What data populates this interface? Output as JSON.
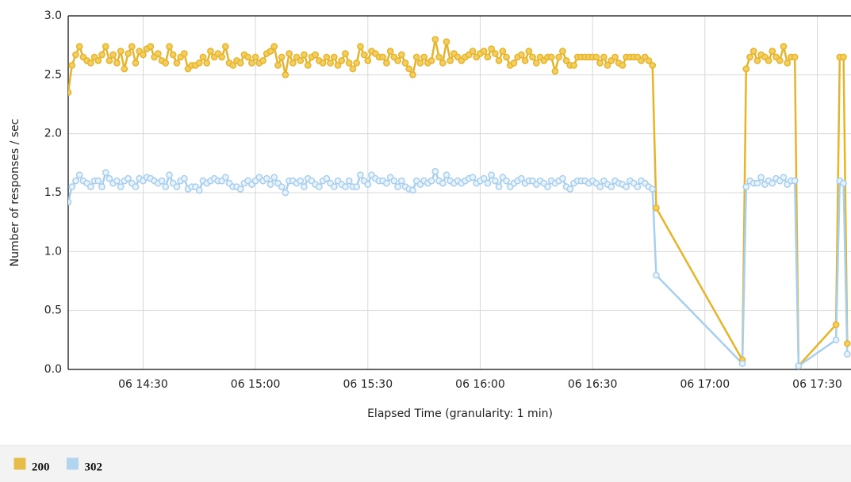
{
  "chart_data": {
    "type": "line",
    "xlabel": "Elapsed Time (granularity: 1 min)",
    "ylabel": "Number of responses / sec",
    "xlim": [
      "06 14:10",
      "06 17:39"
    ],
    "xticks": [
      "06 14:30",
      "06 15:00",
      "06 15:30",
      "06 16:00",
      "06 16:30",
      "06 17:00",
      "06 17:30"
    ],
    "ylim": [
      0,
      3
    ],
    "yticks": [
      {
        "value": 0,
        "label": "0.0"
      },
      0.5,
      {
        "value": 1,
        "label": "1.0"
      },
      1.5,
      {
        "value": 2,
        "label": "2.0"
      },
      2.5,
      {
        "value": 3,
        "label": "3.0"
      }
    ],
    "grid": true,
    "legend": "bottom-left",
    "x": [
      "06 14:10",
      "06 14:11",
      "06 14:12",
      "06 14:13",
      "06 14:14",
      "06 14:15",
      "06 14:16",
      "06 14:17",
      "06 14:18",
      "06 14:19",
      "06 14:20",
      "06 14:21",
      "06 14:22",
      "06 14:23",
      "06 14:24",
      "06 14:25",
      "06 14:26",
      "06 14:27",
      "06 14:28",
      "06 14:29",
      "06 14:30",
      "06 14:31",
      "06 14:32",
      "06 14:33",
      "06 14:34",
      "06 14:35",
      "06 14:36",
      "06 14:37",
      "06 14:38",
      "06 14:39",
      "06 14:40",
      "06 14:41",
      "06 14:42",
      "06 14:43",
      "06 14:44",
      "06 14:45",
      "06 14:46",
      "06 14:47",
      "06 14:48",
      "06 14:49",
      "06 14:50",
      "06 14:51",
      "06 14:52",
      "06 14:53",
      "06 14:54",
      "06 14:55",
      "06 14:56",
      "06 14:57",
      "06 14:58",
      "06 14:59",
      "06 15:00",
      "06 15:01",
      "06 15:02",
      "06 15:03",
      "06 15:04",
      "06 15:05",
      "06 15:06",
      "06 15:07",
      "06 15:08",
      "06 15:09",
      "06 15:10",
      "06 15:11",
      "06 15:12",
      "06 15:13",
      "06 15:14",
      "06 15:15",
      "06 15:16",
      "06 15:17",
      "06 15:18",
      "06 15:19",
      "06 15:20",
      "06 15:21",
      "06 15:22",
      "06 15:23",
      "06 15:24",
      "06 15:25",
      "06 15:26",
      "06 15:27",
      "06 15:28",
      "06 15:29",
      "06 15:30",
      "06 15:31",
      "06 15:32",
      "06 15:33",
      "06 15:34",
      "06 15:35",
      "06 15:36",
      "06 15:37",
      "06 15:38",
      "06 15:39",
      "06 15:40",
      "06 15:41",
      "06 15:42",
      "06 15:43",
      "06 15:44",
      "06 15:45",
      "06 15:46",
      "06 15:47",
      "06 15:48",
      "06 15:49",
      "06 15:50",
      "06 15:51",
      "06 15:52",
      "06 15:53",
      "06 15:54",
      "06 15:55",
      "06 15:56",
      "06 15:57",
      "06 15:58",
      "06 15:59",
      "06 16:00",
      "06 16:01",
      "06 16:02",
      "06 16:03",
      "06 16:04",
      "06 16:05",
      "06 16:06",
      "06 16:07",
      "06 16:08",
      "06 16:09",
      "06 16:10",
      "06 16:11",
      "06 16:12",
      "06 16:13",
      "06 16:14",
      "06 16:15",
      "06 16:16",
      "06 16:17",
      "06 16:18",
      "06 16:19",
      "06 16:20",
      "06 16:21",
      "06 16:22",
      "06 16:23",
      "06 16:24",
      "06 16:25",
      "06 16:26",
      "06 16:27",
      "06 16:28",
      "06 16:29",
      "06 16:30",
      "06 16:31",
      "06 16:32",
      "06 16:33",
      "06 16:34",
      "06 16:35",
      "06 16:36",
      "06 16:37",
      "06 16:38",
      "06 16:39",
      "06 16:40",
      "06 16:41",
      "06 16:42",
      "06 16:43",
      "06 16:44",
      "06 16:45",
      "06 16:46",
      "06 16:47",
      "06 17:10",
      "06 17:11",
      "06 17:12",
      "06 17:13",
      "06 17:14",
      "06 17:15",
      "06 17:16",
      "06 17:17",
      "06 17:18",
      "06 17:19",
      "06 17:20",
      "06 17:21",
      "06 17:22",
      "06 17:23",
      "06 17:24",
      "06 17:25",
      "06 17:35",
      "06 17:36",
      "06 17:37",
      "06 17:38"
    ],
    "series": [
      {
        "name": "200",
        "color": "#e6b42c",
        "marker_fill": "#f3cf62",
        "values": [
          2.35,
          2.58,
          2.67,
          2.74,
          2.65,
          2.62,
          2.6,
          2.65,
          2.62,
          2.67,
          2.74,
          2.62,
          2.67,
          2.6,
          2.7,
          2.55,
          2.68,
          2.74,
          2.6,
          2.7,
          2.67,
          2.72,
          2.74,
          2.65,
          2.68,
          2.62,
          2.6,
          2.74,
          2.67,
          2.6,
          2.65,
          2.68,
          2.55,
          2.58,
          2.58,
          2.6,
          2.65,
          2.6,
          2.7,
          2.65,
          2.68,
          2.65,
          2.74,
          2.6,
          2.58,
          2.62,
          2.6,
          2.67,
          2.65,
          2.6,
          2.65,
          2.6,
          2.62,
          2.68,
          2.7,
          2.74,
          2.58,
          2.65,
          2.5,
          2.68,
          2.6,
          2.65,
          2.62,
          2.67,
          2.58,
          2.65,
          2.67,
          2.62,
          2.6,
          2.65,
          2.6,
          2.65,
          2.58,
          2.62,
          2.68,
          2.6,
          2.55,
          2.6,
          2.74,
          2.67,
          2.62,
          2.7,
          2.68,
          2.65,
          2.65,
          2.6,
          2.7,
          2.65,
          2.62,
          2.67,
          2.6,
          2.55,
          2.5,
          2.65,
          2.6,
          2.65,
          2.6,
          2.62,
          2.8,
          2.65,
          2.6,
          2.78,
          2.62,
          2.68,
          2.65,
          2.62,
          2.65,
          2.67,
          2.7,
          2.65,
          2.68,
          2.7,
          2.65,
          2.72,
          2.68,
          2.62,
          2.7,
          2.65,
          2.58,
          2.6,
          2.65,
          2.67,
          2.62,
          2.7,
          2.65,
          2.6,
          2.65,
          2.62,
          2.65,
          2.65,
          2.53,
          2.65,
          2.7,
          2.62,
          2.58,
          2.58,
          2.65,
          2.65,
          2.65,
          2.65,
          2.65,
          2.65,
          2.6,
          2.65,
          2.58,
          2.62,
          2.65,
          2.6,
          2.58,
          2.65,
          2.65,
          2.65,
          2.65,
          2.62,
          2.65,
          2.62,
          2.58,
          1.37,
          0.08,
          2.55,
          2.65,
          2.7,
          2.62,
          2.67,
          2.65,
          2.62,
          2.7,
          2.65,
          2.62,
          2.74,
          2.6,
          2.65,
          2.65,
          0.03,
          0.38,
          2.65,
          2.65,
          0.22
        ]
      },
      {
        "name": "302",
        "color": "#a8cfee",
        "marker_fill": "#e8f3fc",
        "values": [
          1.42,
          1.55,
          1.6,
          1.65,
          1.6,
          1.58,
          1.55,
          1.6,
          1.6,
          1.55,
          1.67,
          1.62,
          1.58,
          1.6,
          1.55,
          1.6,
          1.62,
          1.58,
          1.55,
          1.62,
          1.6,
          1.63,
          1.62,
          1.6,
          1.58,
          1.6,
          1.55,
          1.65,
          1.58,
          1.55,
          1.6,
          1.62,
          1.53,
          1.55,
          1.55,
          1.52,
          1.6,
          1.58,
          1.6,
          1.62,
          1.6,
          1.6,
          1.63,
          1.58,
          1.55,
          1.55,
          1.53,
          1.58,
          1.6,
          1.57,
          1.6,
          1.63,
          1.6,
          1.62,
          1.57,
          1.63,
          1.58,
          1.55,
          1.5,
          1.6,
          1.6,
          1.58,
          1.6,
          1.55,
          1.62,
          1.6,
          1.57,
          1.55,
          1.6,
          1.62,
          1.58,
          1.55,
          1.6,
          1.57,
          1.55,
          1.6,
          1.55,
          1.55,
          1.65,
          1.6,
          1.57,
          1.65,
          1.62,
          1.6,
          1.6,
          1.58,
          1.63,
          1.6,
          1.55,
          1.6,
          1.55,
          1.53,
          1.52,
          1.6,
          1.57,
          1.6,
          1.58,
          1.6,
          1.68,
          1.6,
          1.58,
          1.65,
          1.6,
          1.58,
          1.6,
          1.58,
          1.6,
          1.62,
          1.63,
          1.58,
          1.6,
          1.62,
          1.58,
          1.65,
          1.6,
          1.55,
          1.63,
          1.6,
          1.55,
          1.58,
          1.6,
          1.62,
          1.58,
          1.6,
          1.6,
          1.57,
          1.6,
          1.58,
          1.55,
          1.6,
          1.58,
          1.6,
          1.62,
          1.55,
          1.53,
          1.58,
          1.6,
          1.6,
          1.6,
          1.58,
          1.6,
          1.58,
          1.55,
          1.6,
          1.57,
          1.55,
          1.6,
          1.58,
          1.57,
          1.55,
          1.6,
          1.58,
          1.55,
          1.6,
          1.58,
          1.55,
          1.53,
          0.8,
          0.05,
          1.55,
          1.6,
          1.58,
          1.58,
          1.63,
          1.57,
          1.6,
          1.58,
          1.62,
          1.6,
          1.63,
          1.57,
          1.6,
          1.6,
          0.03,
          0.25,
          1.6,
          1.58,
          0.13
        ]
      }
    ]
  }
}
